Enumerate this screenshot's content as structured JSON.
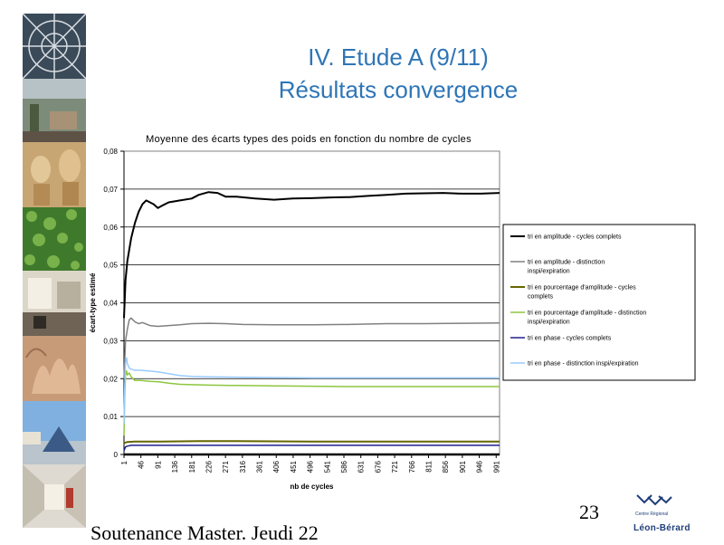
{
  "slide": {
    "title_line1": "IV. Etude A (9/11)",
    "title_line2": "Résultats convergence",
    "slide_number": "23",
    "footer": "Soutenance Master. Jeudi 22",
    "logo": {
      "small_text": "Centre Régional",
      "name": "Léon-Bérard"
    }
  },
  "colors": {
    "title": "#2E75B6",
    "logo": "#1F3E7A"
  },
  "chart_data": {
    "type": "line",
    "title": "Moyenne des écarts types des poids en fonction du nombre de cycles",
    "xlabel": "nb de cycles",
    "ylabel": "écart-type estimé",
    "ylim": [
      0,
      0.08
    ],
    "yticks": [
      "0",
      "0,01",
      "0,02",
      "0,03",
      "0,04",
      "0,05",
      "0,06",
      "0,07",
      "0,08"
    ],
    "xlim": [
      1,
      1000
    ],
    "xticks": [
      1,
      46,
      91,
      136,
      181,
      226,
      271,
      316,
      361,
      406,
      451,
      496,
      541,
      586,
      631,
      676,
      721,
      766,
      811,
      856,
      901,
      946,
      991
    ],
    "grid": "horizontal",
    "legend_position": "right",
    "series": [
      {
        "name": "tri en amplitude - cycles complets",
        "color": "#000000",
        "width": 2,
        "x": [
          1,
          5,
          10,
          20,
          30,
          40,
          50,
          60,
          70,
          80,
          91,
          100,
          120,
          150,
          181,
          200,
          226,
          250,
          271,
          300,
          350,
          400,
          450,
          500,
          550,
          600,
          650,
          700,
          750,
          800,
          850,
          900,
          950,
          1000
        ],
        "y": [
          0.036,
          0.046,
          0.051,
          0.057,
          0.061,
          0.064,
          0.066,
          0.067,
          0.0665,
          0.066,
          0.065,
          0.0655,
          0.0665,
          0.067,
          0.0675,
          0.0685,
          0.0692,
          0.069,
          0.068,
          0.068,
          0.0675,
          0.0672,
          0.0675,
          0.0676,
          0.0678,
          0.0679,
          0.0682,
          0.0685,
          0.0688,
          0.0689,
          0.069,
          0.0688,
          0.0688,
          0.069
        ]
      },
      {
        "name": "tri en amplitude - distinction inspi/expiration",
        "color": "#808080",
        "width": 1.5,
        "x": [
          1,
          5,
          10,
          15,
          20,
          30,
          40,
          50,
          70,
          91,
          120,
          150,
          181,
          226,
          271,
          316,
          400,
          500,
          600,
          700,
          800,
          900,
          1000
        ],
        "y": [
          0.02,
          0.03,
          0.033,
          0.0355,
          0.036,
          0.035,
          0.0345,
          0.0348,
          0.034,
          0.0338,
          0.034,
          0.0342,
          0.0345,
          0.0346,
          0.0345,
          0.0343,
          0.0342,
          0.0342,
          0.0343,
          0.0345,
          0.0345,
          0.0346,
          0.0347
        ]
      },
      {
        "name": "tri en pourcentage d'amplitude - cycles complets",
        "color": "#666600",
        "width": 2,
        "x": [
          1,
          10,
          30,
          100,
          200,
          300,
          500,
          700,
          1000
        ],
        "y": [
          0.003,
          0.0033,
          0.0034,
          0.0034,
          0.0035,
          0.0035,
          0.0034,
          0.0034,
          0.0034
        ]
      },
      {
        "name": "tri en pourcentage d'amplitude - distinction inspi/expiration",
        "color": "#8DC63F",
        "width": 1.5,
        "x": [
          1,
          3,
          5,
          8,
          10,
          15,
          20,
          30,
          46,
          70,
          91,
          120,
          150,
          181,
          226,
          300,
          400,
          500,
          600,
          700,
          800,
          900,
          1000
        ],
        "y": [
          0.005,
          0.015,
          0.021,
          0.022,
          0.021,
          0.0215,
          0.0205,
          0.0195,
          0.0195,
          0.0193,
          0.0192,
          0.0188,
          0.0185,
          0.0184,
          0.0183,
          0.0182,
          0.0181,
          0.018,
          0.0179,
          0.0179,
          0.0179,
          0.0179,
          0.0179
        ]
      },
      {
        "name": "tri en phase - cycles complets",
        "color": "#1F1F8F",
        "width": 1.5,
        "x": [
          1,
          5,
          10,
          20,
          50,
          100,
          300,
          600,
          1000
        ],
        "y": [
          0.001,
          0.002,
          0.0022,
          0.0024,
          0.0024,
          0.0024,
          0.0024,
          0.0024,
          0.0024
        ]
      },
      {
        "name": "tri en phase - distinction inspi/expiration",
        "color": "#99CCFF",
        "width": 1.5,
        "x": [
          1,
          3,
          5,
          8,
          10,
          15,
          20,
          30,
          46,
          70,
          91,
          120,
          150,
          181,
          226,
          300,
          400,
          500,
          600,
          700,
          800,
          900,
          1000
        ],
        "y": [
          0.008,
          0.018,
          0.024,
          0.0255,
          0.024,
          0.0228,
          0.0225,
          0.0222,
          0.0222,
          0.022,
          0.0218,
          0.0213,
          0.0208,
          0.0206,
          0.0205,
          0.0204,
          0.0203,
          0.0202,
          0.0202,
          0.0202,
          0.0202,
          0.0202,
          0.0202
        ]
      }
    ]
  }
}
